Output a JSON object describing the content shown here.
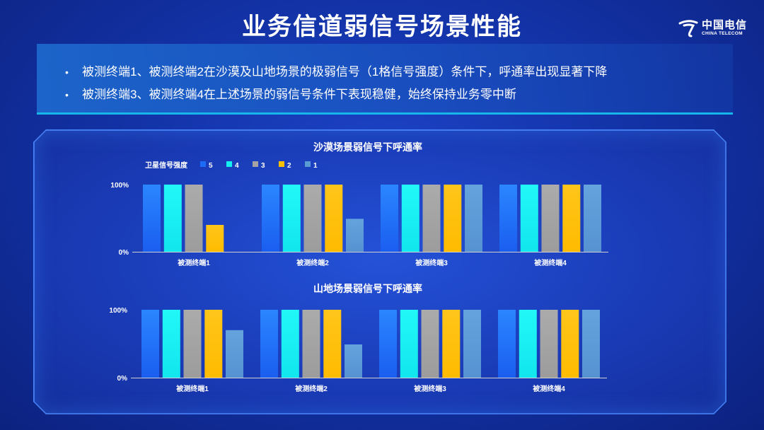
{
  "header": {
    "title": "业务信道弱信号场景性能",
    "logo_cn": "中国电信",
    "logo_en": "CHINA TELECOM"
  },
  "summary": {
    "bullets": [
      "被测终端1、被测终端2在沙漠及山地场景的极弱信号（1格信号强度）条件下，呼通率出现显著下降",
      "被测终端3、被测终端4在上述场景的弱信号条件下表现稳健，始终保持业务零中断"
    ]
  },
  "colors": {
    "s5": "#1e6cf5",
    "s4": "#14f0f0",
    "s3": "#a3a3a3",
    "s2": "#ffc000",
    "s1": "#5b9bd5"
  },
  "chart_data": [
    {
      "type": "bar",
      "title": "沙漠场景弱信号下呼通率",
      "legend_title": "卫星信号强度",
      "categories": [
        "被测终端1",
        "被测终端2",
        "被测终端3",
        "被测终端4"
      ],
      "series": [
        {
          "name": "5",
          "values": [
            100,
            100,
            100,
            100
          ]
        },
        {
          "name": "4",
          "values": [
            100,
            100,
            100,
            100
          ]
        },
        {
          "name": "3",
          "values": [
            100,
            100,
            100,
            100
          ]
        },
        {
          "name": "2",
          "values": [
            40,
            100,
            100,
            100
          ]
        },
        {
          "name": "1",
          "values": [
            0,
            49,
            100,
            100
          ]
        }
      ],
      "yticks": [
        "0%",
        "100%"
      ],
      "ylim": [
        0,
        100
      ],
      "legend": "top-left"
    },
    {
      "type": "bar",
      "title": "山地场景弱信号下呼通率",
      "categories": [
        "被测终端1",
        "被测终端2",
        "被测终端3",
        "被测终端4"
      ],
      "series": [
        {
          "name": "5",
          "values": [
            100,
            100,
            100,
            100
          ]
        },
        {
          "name": "4",
          "values": [
            100,
            100,
            100,
            100
          ]
        },
        {
          "name": "3",
          "values": [
            100,
            100,
            100,
            100
          ]
        },
        {
          "name": "2",
          "values": [
            100,
            100,
            100,
            100
          ]
        },
        {
          "name": "1",
          "values": [
            70,
            49,
            100,
            100
          ]
        }
      ],
      "yticks": [
        "0%",
        "100%"
      ],
      "ylim": [
        0,
        100
      ]
    }
  ]
}
